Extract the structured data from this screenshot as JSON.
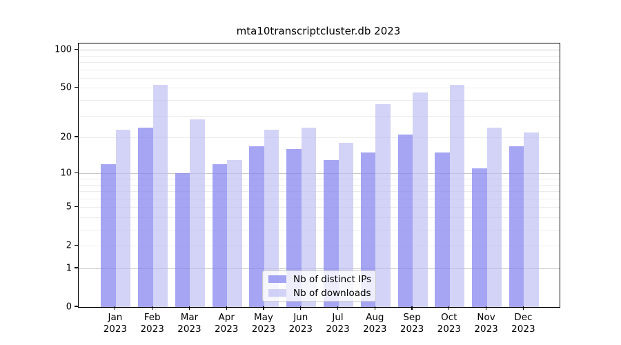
{
  "title": "mta10transcriptcluster.db 2023",
  "legend": {
    "items": [
      {
        "label": "Nb of distinct IPs",
        "color": "#a6a6f4"
      },
      {
        "label": "Nb of downloads",
        "color": "#d9d9f8"
      }
    ]
  },
  "palette": {
    "distinct_ips_fill": "rgba(130,130,238,0.72)",
    "downloads_fill": "rgba(187,187,242,0.65)",
    "grid_major": "#c9c9c9",
    "grid_minor": "#ececec",
    "axis": "#000000"
  },
  "x_axis": {
    "months": [
      "Jan",
      "Feb",
      "Mar",
      "Apr",
      "May",
      "Jun",
      "Jul",
      "Aug",
      "Sep",
      "Oct",
      "Nov",
      "Dec"
    ],
    "year": "2023"
  },
  "y_axis": {
    "tick_labels": [
      "0",
      "1",
      "2",
      "5",
      "10",
      "20",
      "50",
      "100"
    ]
  },
  "chart_data": {
    "type": "bar",
    "title": "mta10transcriptcluster.db 2023",
    "categories": [
      "Jan 2023",
      "Feb 2023",
      "Mar 2023",
      "Apr 2023",
      "May 2023",
      "Jun 2023",
      "Jul 2023",
      "Aug 2023",
      "Sep 2023",
      "Oct 2023",
      "Nov 2023",
      "Dec 2023"
    ],
    "series": [
      {
        "name": "Nb of distinct IPs",
        "color": "#a6a6f4",
        "values": [
          12,
          24,
          10,
          12,
          17,
          16,
          13,
          15,
          21,
          15,
          11,
          17
        ]
      },
      {
        "name": "Nb of downloads",
        "color": "#d9d9f8",
        "values": [
          23,
          53,
          28,
          13,
          23,
          24,
          18,
          37,
          46,
          53,
          24,
          22
        ]
      }
    ],
    "xlabel": "",
    "ylabel": "",
    "yscale": "log1p",
    "yticks": [
      0,
      1,
      2,
      5,
      10,
      20,
      50,
      100
    ],
    "minor_yticks": [
      2,
      3,
      4,
      5,
      6,
      7,
      8,
      9,
      20,
      30,
      40,
      50,
      60,
      70,
      80,
      90
    ],
    "major_yticks": [
      1,
      10,
      100
    ],
    "ylim": [
      0,
      112
    ],
    "grid": true,
    "legend_position": "lower center"
  }
}
